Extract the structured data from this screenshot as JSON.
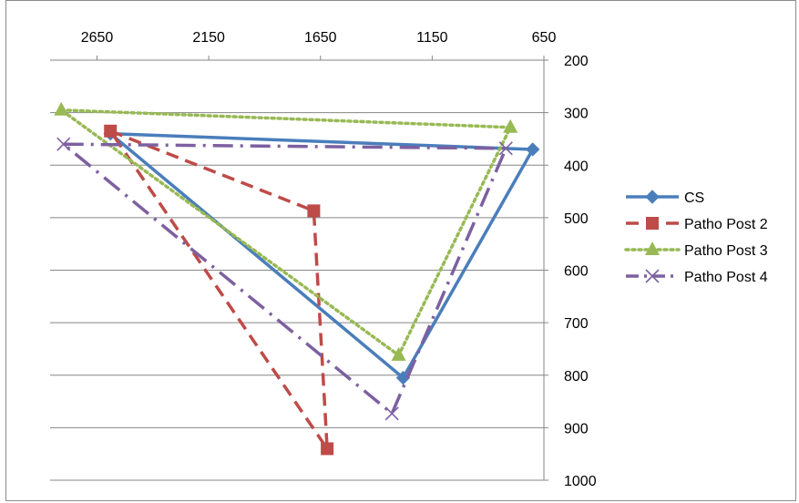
{
  "chart_data": {
    "type": "line",
    "title": "",
    "xlabel": "",
    "ylabel": "",
    "x_axis": {
      "position": "top",
      "reversed": true,
      "range": [
        2860,
        650
      ],
      "ticks": [
        2650,
        2150,
        1650,
        1150,
        650
      ],
      "tick_labels": [
        "2650",
        "2150",
        "1650",
        "1150",
        "650"
      ]
    },
    "y_axis": {
      "position": "right",
      "reversed": true,
      "range": [
        200,
        1000
      ],
      "ticks": [
        200,
        300,
        400,
        500,
        600,
        700,
        800,
        900,
        1000
      ],
      "tick_labels": [
        "200",
        "300",
        "400",
        "500",
        "600",
        "700",
        "800",
        "900",
        "1000"
      ]
    },
    "grid": "horizontal",
    "legend_position": "right",
    "series": [
      {
        "name": "CS",
        "color": "#4a7ebb",
        "marker": "diamond",
        "dash": "solid",
        "points": [
          [
            2590,
            340
          ],
          [
            700,
            370
          ],
          [
            1280,
            805
          ],
          [
            2590,
            340
          ]
        ]
      },
      {
        "name": "Patho Post 2",
        "color": "#be4b48",
        "marker": "square",
        "dash": "dash",
        "points": [
          [
            2590,
            335
          ],
          [
            1680,
            487
          ],
          [
            1620,
            940
          ],
          [
            2590,
            335
          ]
        ]
      },
      {
        "name": "Patho Post 3",
        "color": "#98b954",
        "marker": "triangle",
        "dash": "dot",
        "points": [
          [
            2810,
            295
          ],
          [
            800,
            328
          ],
          [
            1300,
            762
          ],
          [
            2810,
            295
          ]
        ]
      },
      {
        "name": "Patho Post 4",
        "color": "#7d60a0",
        "marker": "x",
        "dash": "dashdot",
        "points": [
          [
            2800,
            360
          ],
          [
            820,
            368
          ],
          [
            1330,
            873
          ],
          [
            2800,
            360
          ]
        ]
      }
    ]
  }
}
